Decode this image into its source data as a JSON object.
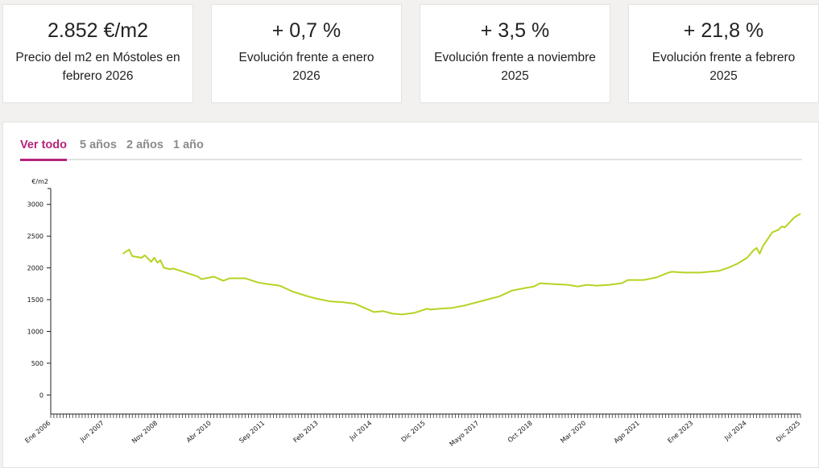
{
  "cards": [
    {
      "value": "2.852 €/m2",
      "description": "Precio del m2 en Móstoles en febrero 2026"
    },
    {
      "value": "+ 0,7 %",
      "description": "Evolución frente a enero 2026"
    },
    {
      "value": "+ 3,5 %",
      "description": "Evolución frente a noviembre 2025"
    },
    {
      "value": "+ 21,8 %",
      "description": "Evolución frente a febrero 2025"
    }
  ],
  "tabs": [
    "Ver todo",
    "5 años",
    "2 años",
    "1 año"
  ],
  "active_tab": "Ver todo",
  "colors": {
    "accent": "#b5247a",
    "line": "#b5d322",
    "background": "#f2f1ef"
  },
  "chart_data": {
    "type": "line",
    "ylabel": "€/m2",
    "ylim": [
      -300,
      3250
    ],
    "yticks": [
      0,
      500,
      1000,
      1500,
      2000,
      2500,
      3000
    ],
    "xlim": [
      "2006-01",
      "2025-12"
    ],
    "xtick_labels": [
      "Ene 2006",
      "Jun 2007",
      "Nov 2008",
      "Abr 2010",
      "Sep 2011",
      "Feb 2013",
      "Jul 2014",
      "Dic 2015",
      "Mayo 2017",
      "Oct 2018",
      "Mar 2020",
      "Ago 2021",
      "Ene 2023",
      "Jul 2024",
      "Dic 2025"
    ],
    "grid": false,
    "series": [
      {
        "x": [
          "2007-12",
          "2008-02",
          "2008-03",
          "2008-06",
          "2008-07",
          "2008-09",
          "2008-10",
          "2008-11",
          "2008-12",
          "2009-01",
          "2009-03",
          "2009-04",
          "2009-08",
          "2009-12",
          "2010-01",
          "2010-05",
          "2010-08",
          "2010-10",
          "2011-03",
          "2011-07",
          "2011-10",
          "2012-02",
          "2012-06",
          "2012-11",
          "2013-02",
          "2013-06",
          "2013-10",
          "2014-02",
          "2014-05",
          "2014-08",
          "2014-11",
          "2015-02",
          "2015-05",
          "2015-09",
          "2016-01",
          "2016-02",
          "2016-05",
          "2016-09",
          "2017-01",
          "2017-05",
          "2017-08",
          "2017-12",
          "2018-04",
          "2018-08",
          "2018-11",
          "2019-01",
          "2019-05",
          "2019-10",
          "2020-01",
          "2020-04",
          "2020-07",
          "2020-11",
          "2021-03",
          "2021-05",
          "2021-10",
          "2022-02",
          "2022-06",
          "2022-07",
          "2022-11",
          "2023-04",
          "2023-07",
          "2023-10",
          "2024-01",
          "2024-04",
          "2024-07",
          "2024-09",
          "2024-10",
          "2024-11",
          "2024-12",
          "2025-03",
          "2025-05",
          "2025-06",
          "2025-07",
          "2025-10",
          "2025-12"
        ],
        "y": [
          2224,
          2289,
          2185,
          2160,
          2198,
          2095,
          2160,
          2082,
          2121,
          2004,
          1979,
          1991,
          1927,
          1862,
          1823,
          1862,
          1797,
          1836,
          1836,
          1772,
          1746,
          1720,
          1630,
          1552,
          1513,
          1474,
          1461,
          1435,
          1371,
          1306,
          1319,
          1280,
          1267,
          1293,
          1358,
          1345,
          1358,
          1371,
          1409,
          1461,
          1500,
          1552,
          1642,
          1681,
          1707,
          1759,
          1746,
          1733,
          1707,
          1733,
          1720,
          1733,
          1759,
          1810,
          1810,
          1849,
          1927,
          1940,
          1927,
          1927,
          1940,
          1953,
          2004,
          2069,
          2160,
          2276,
          2315,
          2224,
          2341,
          2560,
          2599,
          2651,
          2638,
          2793,
          2852
        ]
      }
    ]
  }
}
